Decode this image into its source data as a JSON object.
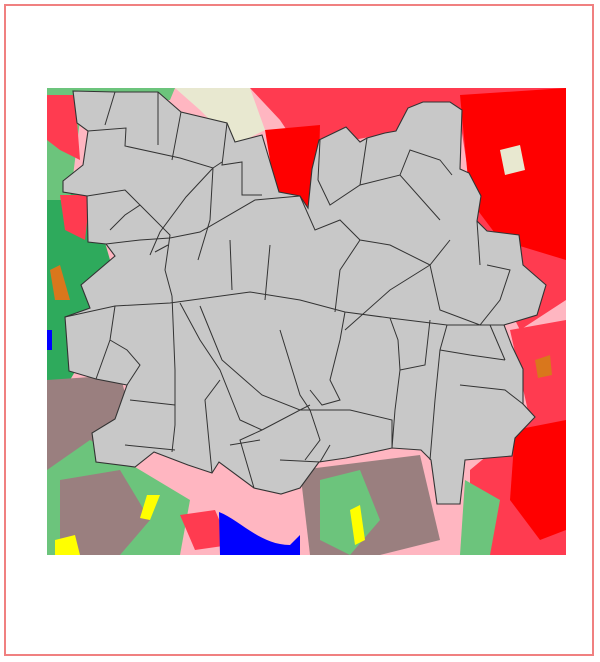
{
  "map": {
    "colors": {
      "frame": "#f08080",
      "districts_fill": "#c8c8c8",
      "districts_stroke": "#333333",
      "urban_dense": "#ff0000",
      "urban": "#ff3b50",
      "suburban": "#ffb6c1",
      "forest": "#2eaa5c",
      "grassland": "#6cc47c",
      "bare": "#9a7f7f",
      "cropland": "#e8e8d0",
      "shrub": "#d9771c",
      "water": "#0000ff",
      "sand": "#ffff00"
    }
  }
}
